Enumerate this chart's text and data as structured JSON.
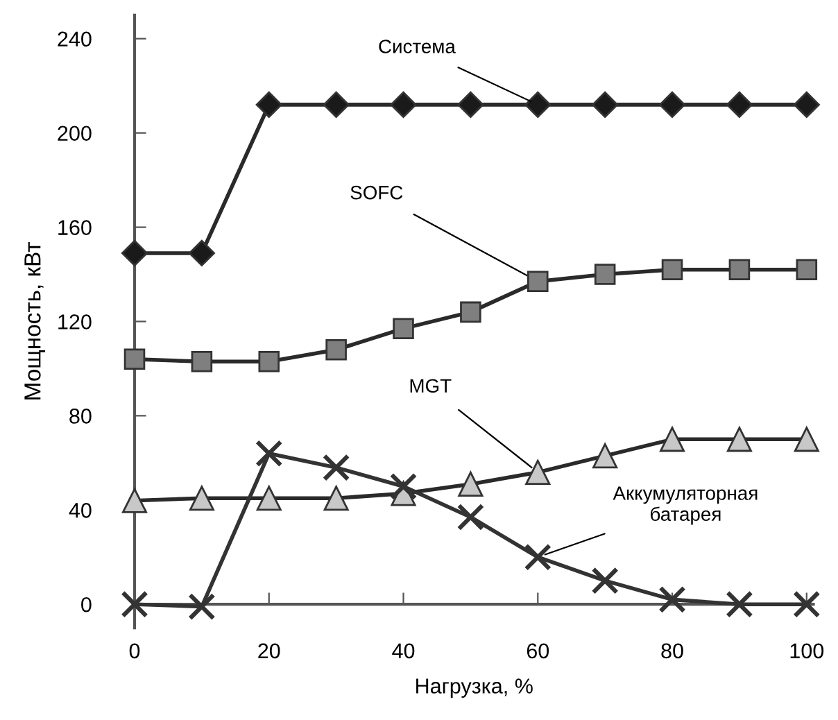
{
  "chart_data": {
    "type": "line",
    "xlabel": "Нагрузка, %",
    "ylabel": "Мощность, кВт",
    "x": [
      0,
      10,
      20,
      30,
      40,
      50,
      60,
      70,
      80,
      90,
      100
    ],
    "series": [
      {
        "name": "Система",
        "color": "#1a1a1a",
        "marker": "diamond",
        "values": [
          149,
          149,
          212,
          212,
          212,
          212,
          212,
          212,
          212,
          212,
          212
        ]
      },
      {
        "name": "SOFC",
        "color": "#7f7f7f",
        "marker": "square",
        "values": [
          104,
          103,
          103,
          108,
          117,
          124,
          137,
          140,
          142,
          142,
          142
        ]
      },
      {
        "name": "MGT",
        "color": "#c8c8c8",
        "marker": "triangle",
        "values": [
          44,
          45,
          45,
          45,
          47,
          51,
          56,
          63,
          70,
          70,
          70
        ]
      },
      {
        "name": "Аккумуляторная\nбатарея",
        "color": "#333333",
        "marker": "cross",
        "values": [
          0,
          -1,
          64,
          58,
          50,
          37,
          20,
          10,
          2,
          0,
          0
        ]
      }
    ],
    "xlim": [
      0,
      101
    ],
    "ylim": [
      -10,
      250
    ],
    "xticks": [
      0,
      20,
      40,
      60,
      80,
      100
    ],
    "yticks": [
      0,
      40,
      80,
      120,
      160,
      200,
      240
    ],
    "grid": false,
    "legend": false,
    "line_style": "solid"
  }
}
